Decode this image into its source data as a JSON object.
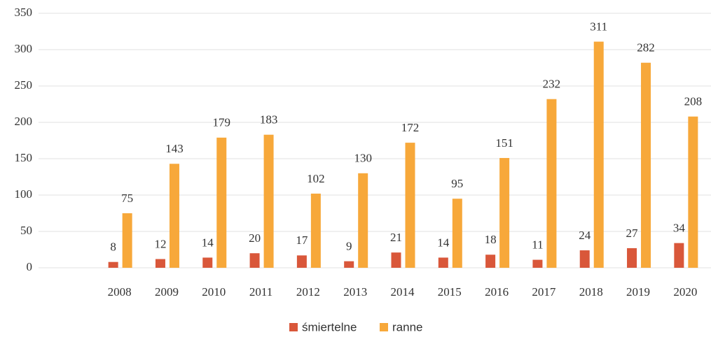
{
  "chart_data": {
    "type": "bar",
    "categories": [
      "2008",
      "2009",
      "2010",
      "2011",
      "2012",
      "2013",
      "2014",
      "2015",
      "2016",
      "2017",
      "2018",
      "2019",
      "2020"
    ],
    "series": [
      {
        "name": "śmiertelne",
        "color": "#d9573a",
        "values": [
          8,
          12,
          14,
          20,
          17,
          9,
          21,
          14,
          18,
          11,
          24,
          27,
          34
        ]
      },
      {
        "name": "ranne",
        "color": "#f7a83a",
        "values": [
          75,
          143,
          179,
          183,
          102,
          130,
          172,
          95,
          151,
          232,
          311,
          282,
          208
        ]
      }
    ],
    "ylim": [
      0,
      350
    ],
    "yticks": [
      0,
      50,
      100,
      150,
      200,
      250,
      300,
      350
    ],
    "grid": true,
    "legend": "bottom"
  }
}
